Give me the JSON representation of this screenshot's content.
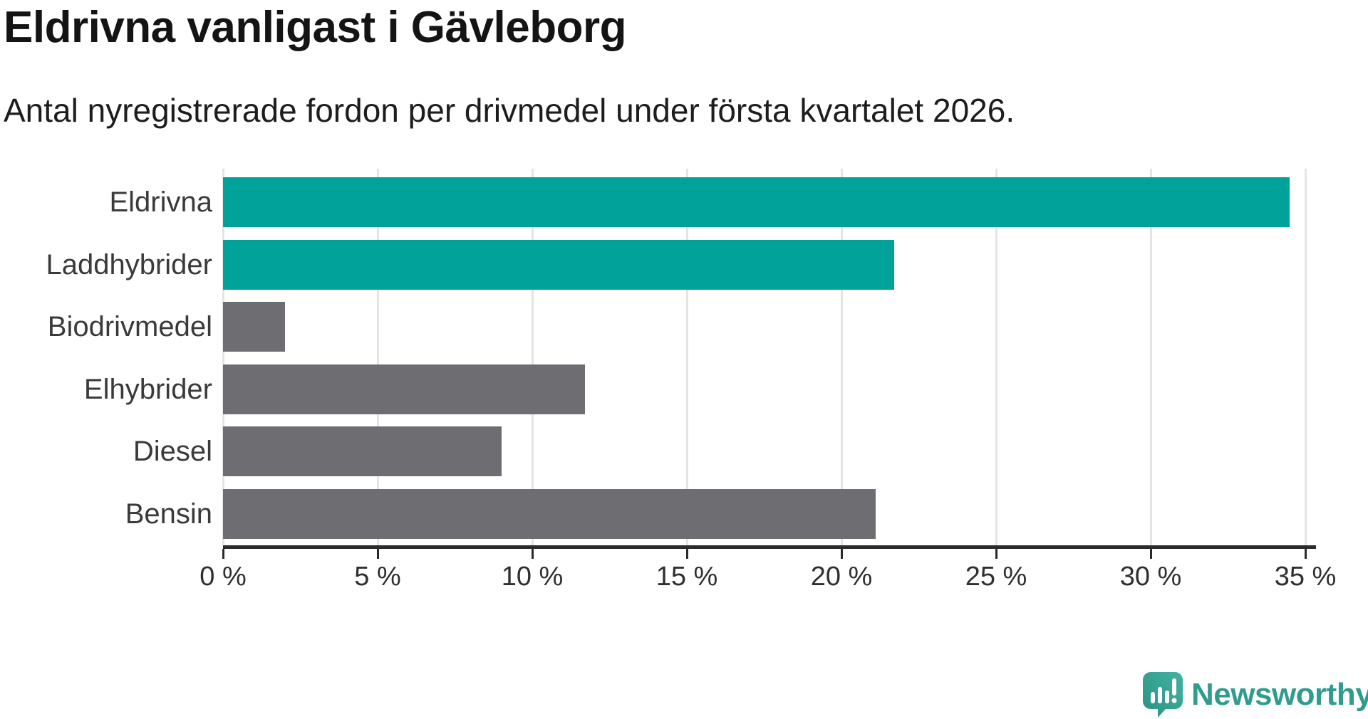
{
  "header": {
    "title": "Eldrivna vanligast i Gävleborg",
    "subtitle": "Antal nyregistrerade fordon per drivmedel under första kvartalet 2026."
  },
  "chart_data": {
    "type": "bar",
    "orientation": "horizontal",
    "title": "Eldrivna vanligast i Gävleborg",
    "subtitle": "Antal nyregistrerade fordon per drivmedel under första kvartalet 2026.",
    "categories": [
      "Eldrivna",
      "Laddhybrider",
      "Biodrivmedel",
      "Elhybrider",
      "Diesel",
      "Bensin"
    ],
    "values": [
      34.5,
      21.7,
      2.0,
      11.7,
      9.0,
      21.1
    ],
    "unit": "%",
    "xlabel": "",
    "ylabel": "",
    "xlim": [
      0,
      35
    ],
    "x_ticks": [
      0,
      5,
      10,
      15,
      20,
      25,
      30,
      35
    ],
    "x_tick_labels": [
      "0 %",
      "5 %",
      "10 %",
      "15 %",
      "20 %",
      "25 %",
      "30 %",
      "35 %"
    ],
    "bar_colors": [
      "#00a29a",
      "#00a29a",
      "#6e6d72",
      "#6e6d72",
      "#6e6d72",
      "#6e6d72"
    ],
    "grid": true,
    "legend": "none"
  },
  "colors": {
    "accent_teal": "#00a29a",
    "bar_gray": "#6e6d72",
    "gridline": "#e4e4e4",
    "axis": "#2b2b2b",
    "title_text": "#141414",
    "subtitle_text": "#1d1d1d",
    "category_text": "#3a3a3a",
    "tick_text": "#2f2f2f",
    "logo_teal": "#2f9c8e"
  },
  "branding": {
    "logo_text": "Newsworthy",
    "logo_icon": "newsworthy-speech-bubble-chart-icon"
  }
}
